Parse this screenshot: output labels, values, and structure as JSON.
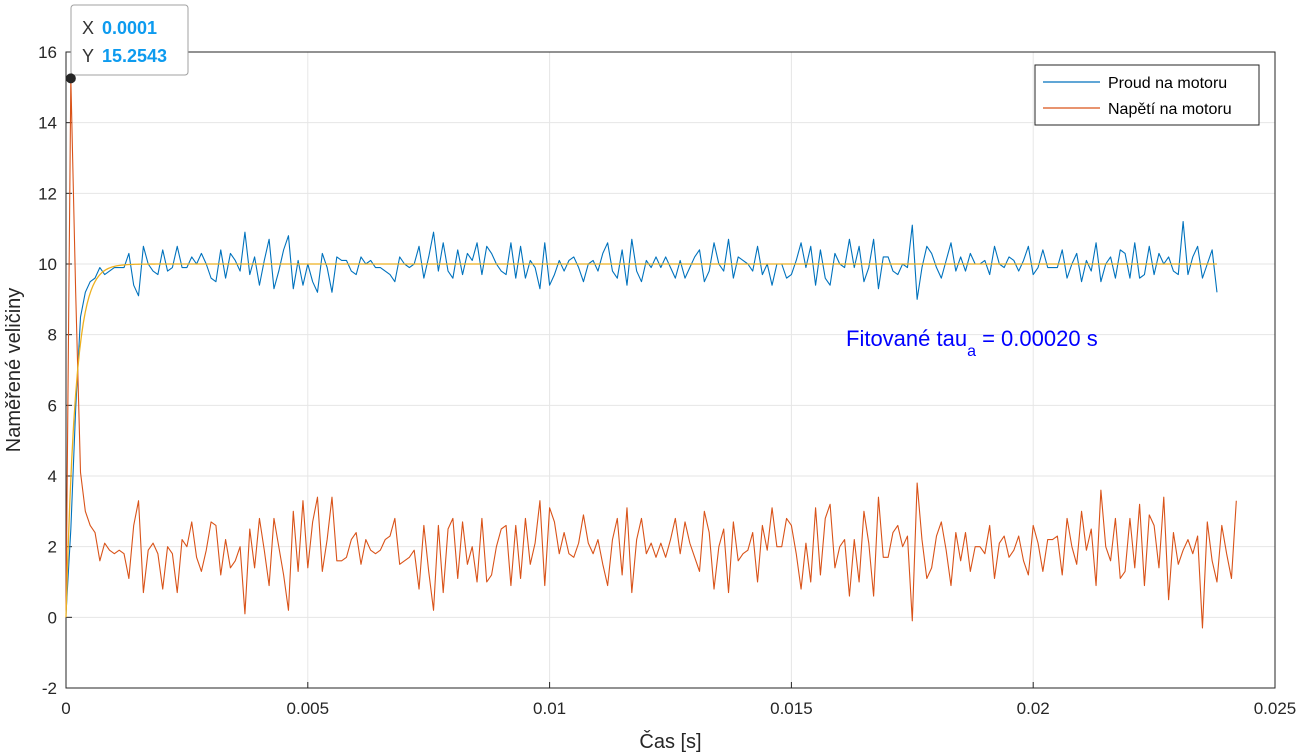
{
  "chart_data": {
    "type": "line",
    "title": "",
    "xlabel": "Čas [s]",
    "ylabel": "Naměřené veličiny",
    "xlim": [
      0,
      0.025
    ],
    "ylim": [
      -2,
      16
    ],
    "x_ticks": [
      0,
      0.005,
      0.01,
      0.015,
      0.02,
      0.025
    ],
    "x_tick_labels": [
      "0",
      "0.005",
      "0.01",
      "0.015",
      "0.02",
      "0.025"
    ],
    "y_ticks": [
      -2,
      0,
      2,
      4,
      6,
      8,
      10,
      12,
      14,
      16
    ],
    "y_tick_labels": [
      "-2",
      "0",
      "2",
      "4",
      "6",
      "8",
      "10",
      "12",
      "14",
      "16"
    ],
    "grid": true,
    "legend_position": "top-right",
    "x_start": 0,
    "x_step": 0.0001,
    "series": [
      {
        "name": "Proud na motoru",
        "color": "#0072bd",
        "values": [
          0.1,
          2.5,
          5.9,
          8.5,
          9.2,
          9.5,
          9.6,
          9.9,
          9.7,
          9.8,
          9.9,
          9.9,
          9.9,
          10.3,
          9.4,
          9.1,
          10.5,
          10.0,
          9.8,
          9.7,
          10.4,
          9.8,
          9.9,
          10.5,
          9.9,
          9.9,
          10.2,
          10.0,
          10.3,
          10.0,
          9.6,
          9.5,
          10.4,
          9.6,
          10.3,
          10.1,
          9.8,
          10.9,
          9.7,
          10.2,
          9.4,
          10.1,
          10.7,
          9.3,
          9.8,
          10.4,
          10.8,
          9.3,
          10.1,
          9.4,
          10.0,
          9.5,
          9.2,
          10.3,
          9.9,
          9.2,
          10.2,
          10.1,
          10.1,
          9.8,
          9.7,
          10.2,
          10.0,
          10.1,
          9.9,
          9.9,
          9.8,
          9.7,
          9.5,
          10.2,
          10.0,
          9.9,
          10.0,
          10.5,
          9.6,
          10.2,
          10.9,
          9.8,
          10.6,
          9.8,
          9.6,
          10.4,
          9.7,
          10.3,
          10.1,
          10.6,
          9.7,
          10.5,
          10.3,
          10.0,
          9.8,
          9.7,
          10.6,
          9.6,
          10.5,
          9.6,
          10.1,
          9.9,
          9.3,
          10.6,
          9.4,
          9.7,
          10.1,
          9.8,
          10.1,
          10.2,
          9.9,
          9.5,
          10.0,
          10.1,
          9.8,
          10.3,
          10.6,
          9.8,
          9.6,
          10.4,
          9.4,
          10.7,
          9.8,
          9.5,
          10.1,
          9.9,
          10.2,
          9.9,
          10.2,
          9.9,
          9.6,
          10.1,
          9.6,
          9.9,
          10.2,
          10.4,
          9.5,
          9.8,
          10.6,
          10.0,
          9.8,
          10.7,
          9.6,
          10.2,
          10.1,
          10.0,
          9.8,
          10.5,
          9.7,
          10.0,
          9.4,
          10.0,
          10.0,
          9.6,
          9.7,
          10.1,
          10.6,
          9.9,
          10.5,
          9.4,
          10.4,
          9.6,
          9.4,
          10.3,
          10.0,
          9.9,
          10.7,
          9.9,
          10.5,
          9.5,
          9.9,
          10.7,
          9.3,
          10.2,
          10.2,
          9.8,
          9.7,
          10.0,
          9.9,
          11.1,
          9.0,
          9.9,
          10.5,
          10.3,
          9.9,
          9.6,
          10.1,
          10.6,
          9.8,
          10.2,
          9.8,
          10.3,
          10.0,
          10.0,
          10.1,
          9.7,
          10.5,
          10.0,
          9.9,
          10.2,
          10.1,
          9.8,
          10.1,
          10.5,
          9.7,
          9.9,
          10.4,
          9.9,
          9.9,
          9.9,
          10.4,
          9.6,
          10.0,
          10.3,
          9.5,
          10.1,
          9.8,
          10.6,
          9.5,
          10.0,
          10.2,
          9.6,
          10.4,
          10.3,
          9.6,
          10.6,
          9.6,
          9.7,
          10.5,
          9.7,
          10.3,
          10.0,
          10.2,
          9.8,
          9.7,
          11.2,
          9.7,
          10.2,
          10.5,
          9.6,
          10.0,
          10.4,
          9.2
        ]
      },
      {
        "name": "Napětí na motoru",
        "color": "#d95319",
        "values": [
          0.2,
          15.2543,
          9.2,
          4.1,
          3.0,
          2.6,
          2.4,
          1.6,
          2.1,
          1.9,
          1.8,
          1.9,
          1.8,
          1.1,
          2.6,
          3.3,
          0.7,
          1.9,
          2.1,
          1.8,
          0.8,
          2.0,
          1.8,
          0.7,
          2.2,
          2.0,
          2.7,
          1.7,
          1.3,
          1.9,
          2.7,
          2.6,
          1.2,
          2.2,
          1.4,
          1.6,
          2.0,
          0.1,
          2.5,
          1.4,
          2.8,
          1.9,
          0.9,
          2.8,
          2.0,
          1.2,
          0.2,
          3.0,
          1.3,
          3.3,
          1.4,
          2.7,
          3.4,
          1.3,
          2.2,
          3.4,
          1.6,
          1.6,
          1.7,
          2.2,
          2.4,
          1.5,
          2.2,
          1.9,
          1.8,
          1.9,
          2.2,
          2.3,
          2.8,
          1.5,
          1.6,
          1.7,
          1.9,
          0.8,
          2.6,
          1.3,
          0.2,
          2.6,
          0.7,
          2.5,
          2.8,
          1.1,
          2.7,
          1.5,
          2.0,
          1.0,
          2.8,
          1.0,
          1.2,
          2.0,
          2.5,
          2.6,
          0.9,
          2.6,
          1.1,
          2.8,
          1.5,
          2.1,
          3.3,
          0.9,
          3.1,
          2.7,
          1.8,
          2.4,
          1.8,
          1.7,
          2.1,
          2.9,
          2.1,
          1.8,
          2.2,
          1.5,
          0.9,
          2.2,
          2.8,
          1.2,
          3.1,
          0.7,
          2.2,
          2.8,
          1.8,
          2.1,
          1.7,
          2.1,
          1.7,
          2.2,
          2.8,
          1.8,
          2.7,
          2.1,
          1.7,
          1.3,
          3.0,
          2.4,
          0.8,
          2.0,
          2.5,
          0.7,
          2.7,
          1.6,
          1.8,
          1.9,
          2.4,
          1.0,
          2.6,
          1.9,
          3.1,
          2.0,
          2.0,
          2.8,
          2.6,
          1.8,
          0.8,
          2.1,
          1.0,
          3.1,
          1.2,
          2.8,
          3.2,
          1.4,
          2.0,
          2.2,
          0.6,
          2.2,
          1.0,
          3.0,
          2.1,
          0.6,
          3.4,
          1.7,
          1.7,
          2.4,
          2.6,
          2.0,
          2.3,
          -0.1,
          3.8,
          2.2,
          1.1,
          1.4,
          2.3,
          2.7,
          1.9,
          0.9,
          2.4,
          1.6,
          2.4,
          1.3,
          2.0,
          2.0,
          1.8,
          2.6,
          1.1,
          2.1,
          2.3,
          1.7,
          1.9,
          2.3,
          1.6,
          1.2,
          2.6,
          2.1,
          1.3,
          2.2,
          2.2,
          2.3,
          1.2,
          2.8,
          2.0,
          1.5,
          3.0,
          1.9,
          2.5,
          0.9,
          3.6,
          2.0,
          1.6,
          2.8,
          1.1,
          1.3,
          2.8,
          1.4,
          3.2,
          0.9,
          2.9,
          2.6,
          1.4,
          3.4,
          0.5,
          2.4,
          1.5,
          1.9,
          2.2,
          1.8,
          2.3,
          -0.3,
          2.7,
          1.6,
          1.0,
          2.6,
          1.8,
          1.1,
          3.3
        ]
      },
      {
        "name": "",
        "color": "#edb120",
        "type": "fit",
        "tau": 0.0002,
        "asymptote": 10
      }
    ],
    "annotations": [
      {
        "main": "Fitované tau",
        "subscript": "a",
        "suffix": " = 0.00020 s",
        "color": "#0000ff"
      }
    ],
    "datatip": {
      "x_key": "X",
      "x_value": "0.0001",
      "y_key": "Y",
      "y_value": "15.2543",
      "x": 0.0001,
      "y": 15.2543
    }
  }
}
